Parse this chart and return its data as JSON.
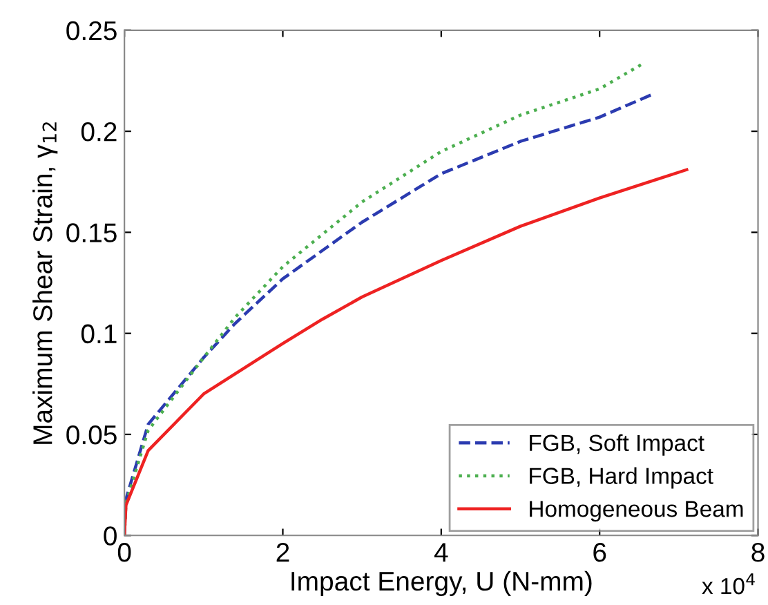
{
  "chart_data": {
    "type": "line",
    "xlabel": "Impact Energy, U (N-mm)",
    "ylabel": "Maximum Shear Strain, γ$_{12}$",
    "annotations": [
      "x 10$^{4}$"
    ],
    "xlim": [
      0,
      8
    ],
    "xticks": [
      0,
      2,
      4,
      6,
      8
    ],
    "ylim": [
      0,
      0.25
    ],
    "yticks": [
      0,
      0.05,
      0.1,
      0.15,
      0.2,
      0.25
    ],
    "grid": false,
    "legend": "bottom right",
    "series": [
      {
        "name": "FGB, Soft Impact",
        "color": "#2b3bb0",
        "line_style": "dashed",
        "x": [
          0,
          0.02,
          0.3,
          1.0,
          1.4,
          2.0,
          3.0,
          4.0,
          5.0,
          6.0,
          6.65
        ],
        "values": [
          0,
          0.018,
          0.055,
          0.088,
          0.105,
          0.127,
          0.155,
          0.179,
          0.195,
          0.207,
          0.218
        ]
      },
      {
        "name": "FGB, Hard Impact",
        "color": "#4caf50",
        "line_style": "dotted",
        "x": [
          0,
          0.02,
          0.3,
          1.0,
          1.4,
          2.0,
          3.0,
          4.0,
          5.0,
          6.0,
          6.57
        ],
        "values": [
          0,
          0.016,
          0.052,
          0.088,
          0.108,
          0.133,
          0.165,
          0.19,
          0.208,
          0.221,
          0.234
        ]
      },
      {
        "name": "Homogeneous Beam",
        "color": "#ee2222",
        "line_style": "solid",
        "x": [
          0,
          0.02,
          0.3,
          1.0,
          2.0,
          2.5,
          3.0,
          4.0,
          5.0,
          6.0,
          7.1
        ],
        "values": [
          0,
          0.015,
          0.042,
          0.07,
          0.095,
          0.107,
          0.118,
          0.136,
          0.153,
          0.167,
          0.181
        ]
      }
    ]
  }
}
